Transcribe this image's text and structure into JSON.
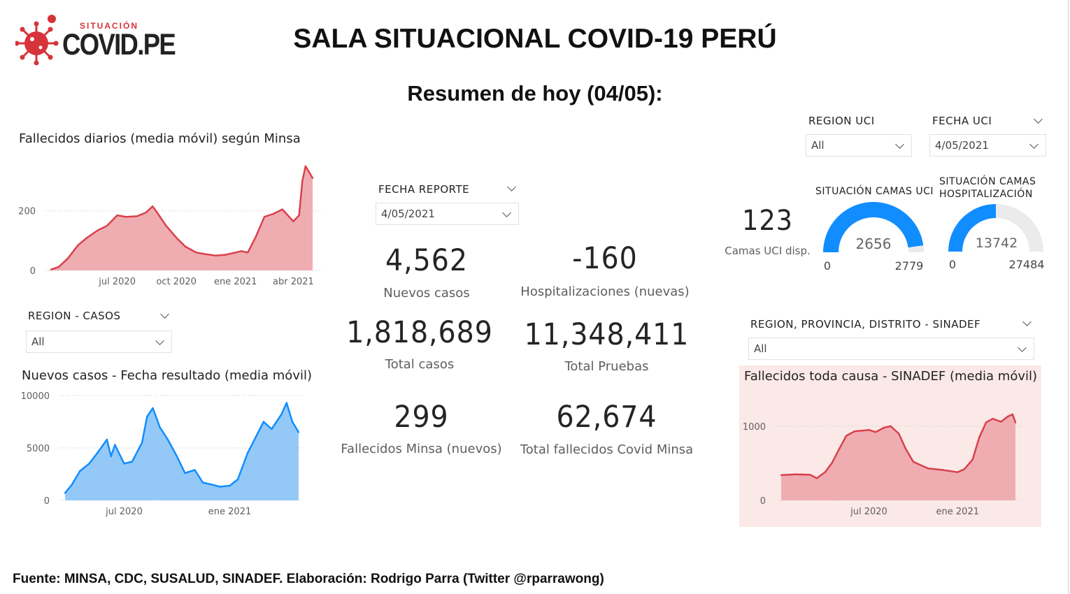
{
  "header": {
    "logo_small": "SITUACIÓN",
    "logo_big": "COVID.PE",
    "title": "SALA SITUACIONAL COVID-19 PERÚ",
    "subtitle": "Resumen de hoy (04/05):",
    "logo_icon": "virus-icon"
  },
  "filters": {
    "fecha_reporte": {
      "label": "FECHA REPORTE",
      "value": "4/05/2021"
    },
    "region_casos": {
      "label": "REGION - CASOS",
      "value": "All"
    },
    "region_uci": {
      "label": "REGION UCI",
      "value": "All"
    },
    "fecha_uci": {
      "label": "FECHA UCI",
      "value": "4/05/2021"
    },
    "region_sinadef": {
      "label": "REGION, PROVINCIA, DISTRITO - SINADEF",
      "value": "All"
    }
  },
  "kpis": {
    "nuevos_casos": {
      "value": "4,562",
      "label": "Nuevos casos"
    },
    "hospitalizaciones": {
      "value": "-160",
      "label": "Hospitalizaciones (nuevas)"
    },
    "total_casos": {
      "value": "1,818,689",
      "label": "Total casos"
    },
    "total_pruebas": {
      "value": "11,348,411",
      "label": "Total Pruebas"
    },
    "fallecidos_nuevos": {
      "value": "299",
      "label": "Fallecidos Minsa (nuevos)"
    },
    "fallecidos_total": {
      "value": "62,674",
      "label": "Total fallecidos Covid Minsa"
    },
    "camas_uci": {
      "value": "123",
      "label": "Camas UCI disp."
    }
  },
  "gauges": {
    "uci": {
      "title": "SITUACIÓN CAMAS UCI",
      "value": "2656",
      "min": "0",
      "max": "2779",
      "fraction": 0.956
    },
    "hosp": {
      "title_line1": "SITUACIÓN CAMAS",
      "title_line2": "HOSPITALIZACIÓN",
      "value": "13742",
      "min": "0",
      "max": "27484",
      "fraction": 0.5
    }
  },
  "colors": {
    "red_line": "#d9414b",
    "red_fill": "#efadb2",
    "blue_line": "#118dff",
    "blue_fill": "#94c9f7",
    "gauge_blue": "#118dff",
    "gauge_bg": "#ebebeb",
    "panel_bg": "#fbe9e7"
  },
  "footer": "Fuente: MINSA, CDC, SUSALUD, SINADEF. Elaboración: Rodrigo Parra (Twitter @rparrawong)",
  "chart_data": [
    {
      "type": "area",
      "title": "Fallecidos diarios (media móvil) según Minsa",
      "x_ticks": [
        "jul 2020",
        "oct 2020",
        "ene 2021",
        "abr 2021"
      ],
      "y_ticks": [
        "0",
        "200"
      ],
      "ylim": [
        0,
        380
      ],
      "x": [
        "2020-03-20",
        "2020-04-01",
        "2020-04-15",
        "2020-05-01",
        "2020-05-15",
        "2020-06-01",
        "2020-06-15",
        "2020-07-01",
        "2020-07-15",
        "2020-08-01",
        "2020-08-15",
        "2020-08-25",
        "2020-09-01",
        "2020-09-15",
        "2020-10-01",
        "2020-10-15",
        "2020-11-01",
        "2020-11-15",
        "2020-12-01",
        "2020-12-15",
        "2021-01-01",
        "2021-01-10",
        "2021-01-20",
        "2021-02-01",
        "2021-02-15",
        "2021-03-01",
        "2021-03-15",
        "2021-04-01",
        "2021-04-10",
        "2021-04-15",
        "2021-04-20",
        "2021-05-01"
      ],
      "values": [
        3,
        12,
        40,
        85,
        110,
        135,
        150,
        185,
        180,
        182,
        195,
        215,
        195,
        150,
        110,
        80,
        60,
        55,
        50,
        52,
        60,
        65,
        60,
        110,
        180,
        190,
        205,
        165,
        185,
        300,
        350,
        310
      ],
      "grid": true
    },
    {
      "type": "area",
      "title": "Nuevos casos - Fecha resultado (media móvil)",
      "x_ticks": [
        "jul 2020",
        "ene 2021"
      ],
      "y_ticks": [
        "0",
        "5000",
        "10000"
      ],
      "ylim": [
        0,
        10000
      ],
      "x": [
        "2020-03-20",
        "2020-04-01",
        "2020-04-15",
        "2020-05-01",
        "2020-05-15",
        "2020-06-01",
        "2020-06-08",
        "2020-06-15",
        "2020-07-01",
        "2020-07-15",
        "2020-08-01",
        "2020-08-10",
        "2020-08-20",
        "2020-09-01",
        "2020-09-15",
        "2020-10-01",
        "2020-10-15",
        "2020-11-01",
        "2020-11-15",
        "2020-12-01",
        "2020-12-15",
        "2021-01-01",
        "2021-01-15",
        "2021-02-01",
        "2021-02-15",
        "2021-03-01",
        "2021-03-15",
        "2021-04-01",
        "2021-04-10",
        "2021-04-20",
        "2021-05-01"
      ],
      "values": [
        700,
        1500,
        2800,
        3500,
        4500,
        5800,
        4200,
        5300,
        3500,
        3700,
        5500,
        8000,
        8800,
        7000,
        5800,
        4200,
        2600,
        2900,
        1700,
        1500,
        1300,
        1400,
        2000,
        4500,
        6000,
        7500,
        6800,
        8200,
        9300,
        7500,
        6500
      ],
      "grid": true
    },
    {
      "type": "area",
      "title": "Fallecidos toda causa - SINADEF (media móvil)",
      "x_ticks": [
        "jul 2020",
        "ene 2021"
      ],
      "y_ticks": [
        "0",
        "1000"
      ],
      "ylim": [
        0,
        1300
      ],
      "x": [
        "2020-01-01",
        "2020-02-01",
        "2020-03-01",
        "2020-03-15",
        "2020-04-01",
        "2020-04-15",
        "2020-05-01",
        "2020-05-15",
        "2020-06-01",
        "2020-07-01",
        "2020-07-15",
        "2020-08-01",
        "2020-08-15",
        "2020-09-01",
        "2020-09-15",
        "2020-10-01",
        "2020-11-01",
        "2020-12-01",
        "2021-01-01",
        "2021-01-15",
        "2021-02-01",
        "2021-02-15",
        "2021-03-01",
        "2021-03-15",
        "2021-04-01",
        "2021-04-15",
        "2021-04-25",
        "2021-05-01"
      ],
      "values": [
        340,
        350,
        345,
        300,
        380,
        500,
        700,
        870,
        930,
        950,
        920,
        980,
        1000,
        900,
        700,
        520,
        430,
        410,
        380,
        420,
        550,
        850,
        1050,
        1100,
        1060,
        1130,
        1160,
        1050
      ],
      "grid": true
    }
  ]
}
